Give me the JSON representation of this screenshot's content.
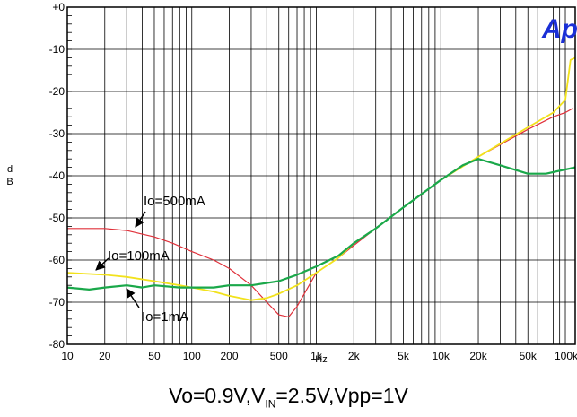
{
  "chart_data": {
    "type": "line",
    "xscale": "log",
    "xlim": [
      10,
      120000
    ],
    "ylim": [
      -80,
      0
    ],
    "xlabel": "Hz",
    "ylabel": "d B",
    "y_ticks": [
      {
        "value": 0,
        "label": "+0"
      },
      {
        "value": -10,
        "label": "-10"
      },
      {
        "value": -20,
        "label": "-20"
      },
      {
        "value": -30,
        "label": "-30"
      },
      {
        "value": -40,
        "label": "-40"
      },
      {
        "value": -50,
        "label": "-50"
      },
      {
        "value": -60,
        "label": "-60"
      },
      {
        "value": -70,
        "label": "-70"
      },
      {
        "value": -80,
        "label": "-80"
      }
    ],
    "x_ticks": [
      {
        "value": 10,
        "label": "10"
      },
      {
        "value": 20,
        "label": "20"
      },
      {
        "value": 50,
        "label": "50"
      },
      {
        "value": 100,
        "label": "100"
      },
      {
        "value": 200,
        "label": "200"
      },
      {
        "value": 500,
        "label": "500"
      },
      {
        "value": 1000,
        "label": "1k"
      },
      {
        "value": 2000,
        "label": "2k"
      },
      {
        "value": 5000,
        "label": "5k"
      },
      {
        "value": 10000,
        "label": "10k"
      },
      {
        "value": 20000,
        "label": "20k"
      },
      {
        "value": 50000,
        "label": "50k"
      },
      {
        "value": 100000,
        "label": "100k"
      }
    ],
    "grid": true,
    "series": [
      {
        "name": "Io=500mA",
        "color": "#e0303a",
        "points": [
          [
            10,
            -52.5
          ],
          [
            20,
            -52.5
          ],
          [
            30,
            -53
          ],
          [
            50,
            -54.5
          ],
          [
            70,
            -56
          ],
          [
            100,
            -58
          ],
          [
            150,
            -60
          ],
          [
            200,
            -62
          ],
          [
            300,
            -66
          ],
          [
            400,
            -70
          ],
          [
            500,
            -73
          ],
          [
            600,
            -73.5
          ],
          [
            700,
            -71
          ],
          [
            800,
            -68
          ],
          [
            1000,
            -63
          ],
          [
            1500,
            -59.5
          ],
          [
            2000,
            -56.5
          ],
          [
            3000,
            -52.5
          ],
          [
            5000,
            -47.5
          ],
          [
            10000,
            -41
          ],
          [
            20000,
            -35.5
          ],
          [
            50000,
            -29
          ],
          [
            80000,
            -26
          ],
          [
            100000,
            -25
          ],
          [
            115000,
            -24
          ]
        ]
      },
      {
        "name": "Io=100mA",
        "color": "#f2e21c",
        "points": [
          [
            10,
            -63
          ],
          [
            20,
            -63.5
          ],
          [
            30,
            -64
          ],
          [
            50,
            -65
          ],
          [
            80,
            -66
          ],
          [
            100,
            -66.5
          ],
          [
            150,
            -67.5
          ],
          [
            200,
            -68.5
          ],
          [
            300,
            -69.5
          ],
          [
            400,
            -69
          ],
          [
            500,
            -68
          ],
          [
            700,
            -66
          ],
          [
            1000,
            -63
          ],
          [
            1500,
            -59.5
          ],
          [
            2000,
            -56
          ],
          [
            3000,
            -52.5
          ],
          [
            5000,
            -47.5
          ],
          [
            10000,
            -41
          ],
          [
            20000,
            -35.5
          ],
          [
            50000,
            -28.5
          ],
          [
            80000,
            -25
          ],
          [
            100000,
            -22
          ],
          [
            110000,
            -12.5
          ],
          [
            120000,
            -12
          ]
        ]
      },
      {
        "name": "Io=1mA",
        "color": "#1aa84a",
        "points": [
          [
            10,
            -66.5
          ],
          [
            15,
            -67
          ],
          [
            20,
            -66.5
          ],
          [
            30,
            -66
          ],
          [
            40,
            -66.5
          ],
          [
            50,
            -66
          ],
          [
            80,
            -66.5
          ],
          [
            100,
            -66.5
          ],
          [
            150,
            -66.5
          ],
          [
            200,
            -66
          ],
          [
            300,
            -66
          ],
          [
            500,
            -65
          ],
          [
            700,
            -63.5
          ],
          [
            1000,
            -61.5
          ],
          [
            1500,
            -59
          ],
          [
            2000,
            -56
          ],
          [
            3000,
            -52.5
          ],
          [
            5000,
            -47.5
          ],
          [
            10000,
            -41
          ],
          [
            15000,
            -37.5
          ],
          [
            20000,
            -36
          ],
          [
            30000,
            -37.5
          ],
          [
            50000,
            -39.5
          ],
          [
            70000,
            -39.5
          ],
          [
            100000,
            -38.5
          ],
          [
            120000,
            -38
          ]
        ]
      }
    ],
    "annotations": [
      "Io=500mA",
      "Io=100mA",
      "Io=1mA"
    ]
  },
  "caption": {
    "prefix": "Vo=0.9V,V",
    "sub": "IN",
    "suffix": "=2.5V,Vpp=1V"
  },
  "logo_text": "Ap"
}
